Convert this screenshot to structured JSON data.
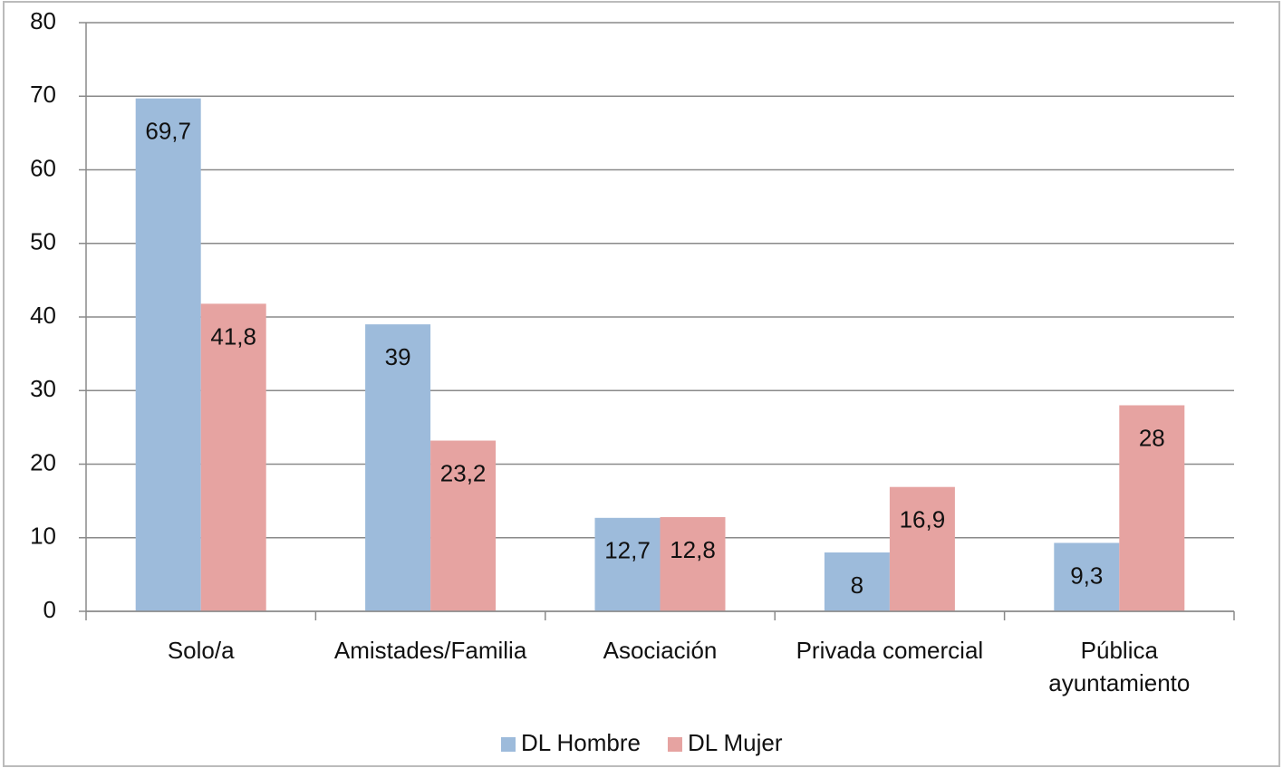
{
  "chart_data": {
    "type": "bar",
    "categories": [
      "Solo/a",
      "Amistades/Familia",
      "Asociación",
      "Privada comercial",
      "Pública ayuntamiento"
    ],
    "series": [
      {
        "name": "DL Hombre",
        "color": "#9dbbdb",
        "values": [
          69.7,
          39,
          12.7,
          8,
          9.3
        ],
        "value_labels": [
          "69,7",
          "39",
          "12,7",
          "8",
          "9,3"
        ]
      },
      {
        "name": "DL Mujer",
        "color": "#e6a3a1",
        "values": [
          41.8,
          23.2,
          12.8,
          16.9,
          28
        ],
        "value_labels": [
          "41,8",
          "23,2",
          "12,8",
          "16,9",
          "28"
        ]
      }
    ],
    "ylim": [
      0,
      80
    ],
    "yticks": [
      0,
      10,
      20,
      30,
      40,
      50,
      60,
      70,
      80
    ],
    "grid": true,
    "legend": "bottom"
  }
}
